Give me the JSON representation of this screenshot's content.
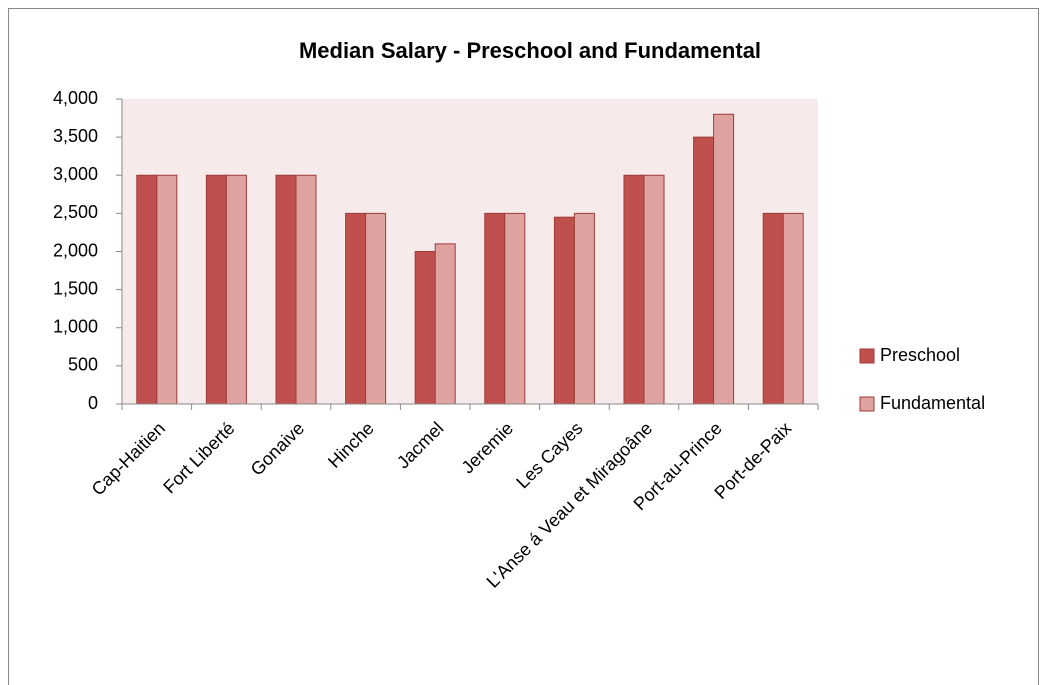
{
  "chart_data": {
    "type": "bar",
    "title": "Median Salary - Preschool and Fundamental",
    "categories": [
      "Cap-Haitien",
      "Fort Liberté",
      "Gonaive",
      "Hinche",
      "Jacmel",
      "Jeremie",
      "Les Cayes",
      "L'Anse á Veau et Miragoâne",
      "Port-au-Prince",
      "Port-de-Paix"
    ],
    "series": [
      {
        "name": "Preschool",
        "color": "#c0504d",
        "values": [
          3000,
          3000,
          3000,
          2500,
          2000,
          2500,
          2450,
          3000,
          3500,
          2500
        ]
      },
      {
        "name": "Fundamental",
        "color": "#dea3a1",
        "values": [
          3000,
          3000,
          3000,
          2500,
          2100,
          2500,
          2500,
          3000,
          3800,
          2500
        ]
      }
    ],
    "ylim": [
      0,
      4000
    ],
    "yticks": [
      0,
      500,
      {
        "value": 1000,
        "label": "1,000"
      },
      {
        "value": 1500,
        "label": "1,500"
      },
      {
        "value": 2000,
        "label": "2,000"
      },
      {
        "value": 2500,
        "label": "2,500"
      },
      {
        "value": 3000,
        "label": "3,000"
      },
      {
        "value": 3500,
        "label": "3,500"
      },
      {
        "value": 4000,
        "label": "4,000"
      }
    ],
    "legend": "right",
    "plot_background": "#f7eaea"
  }
}
